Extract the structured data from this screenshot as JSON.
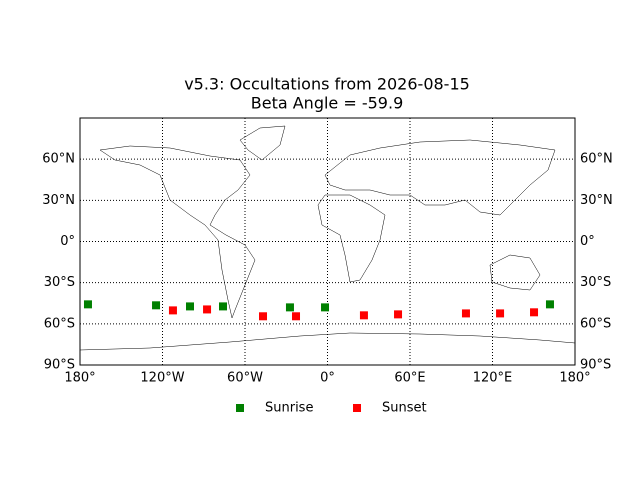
{
  "chart_data": {
    "type": "scatter",
    "title": "v5.3: Occultations from 2026-08-15",
    "subtitle": "Beta Angle = -59.9",
    "xlim": [
      -180,
      180
    ],
    "ylim": [
      -90,
      90
    ],
    "xticks": [
      {
        "value": -180,
        "label": "180°"
      },
      {
        "value": -120,
        "label": "120°W"
      },
      {
        "value": -60,
        "label": "60°W"
      },
      {
        "value": 0,
        "label": "0°"
      },
      {
        "value": 60,
        "label": "60°E"
      },
      {
        "value": 120,
        "label": "120°E"
      },
      {
        "value": 180,
        "label": "180°"
      }
    ],
    "yticks": [
      {
        "value": -90,
        "label": "90°S"
      },
      {
        "value": -60,
        "label": "60°S"
      },
      {
        "value": -30,
        "label": "30°S"
      },
      {
        "value": 0,
        "label": "0°"
      },
      {
        "value": 30,
        "label": "30°N"
      },
      {
        "value": 60,
        "label": "60°N"
      }
    ],
    "grid": true,
    "legend": "bottom",
    "series": [
      {
        "name": "Sunrise",
        "color": "#008000",
        "x": [
          -174.2,
          -124.7,
          -100.0,
          -76.0,
          -27.3,
          -1.8,
          161.8
        ],
        "values": [
          -45.8,
          -46.5,
          -47.3,
          -47.3,
          -48.0,
          -48.0,
          -45.8
        ]
      },
      {
        "name": "Sunset",
        "color": "#ff0000",
        "x": [
          -112.4,
          -87.6,
          -46.9,
          -22.9,
          26.5,
          51.3,
          100.7,
          125.5,
          150.2
        ],
        "values": [
          -50.2,
          -49.5,
          -54.5,
          -54.5,
          -53.8,
          -53.1,
          -52.4,
          -52.4,
          -51.6
        ]
      }
    ]
  }
}
